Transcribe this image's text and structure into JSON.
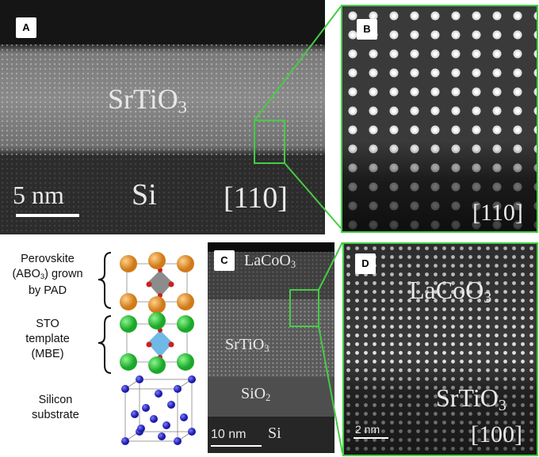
{
  "panels": {
    "A": {
      "letter": "A",
      "film": "SrTiO",
      "film_sub": "3",
      "substrate": "Si",
      "scale": "5 nm",
      "zone": "[110]"
    },
    "B": {
      "letter": "B",
      "zone": "[110]"
    },
    "C": {
      "letter": "C",
      "top": "LaCoO",
      "top_sub": "3",
      "mid": "SrTiO",
      "mid_sub": "3",
      "low": "SiO",
      "low_sub": "2",
      "substrate": "Si",
      "scale": "10 nm"
    },
    "D": {
      "letter": "D",
      "top": "LaCoO",
      "top_sub": "3",
      "bottom": "SrTiO",
      "bottom_sub": "3",
      "scale": "2 nm",
      "zone": "[100]"
    }
  },
  "schematic": {
    "perovskite_l1": "Perovskite",
    "perovskite_l2a": "(ABO",
    "perovskite_l2_sub": "3",
    "perovskite_l2b": ") grown",
    "perovskite_l3": "by PAD",
    "sto_l1": "STO",
    "sto_l2": "template",
    "sto_l3": "(MBE)",
    "si_l1": "Silicon",
    "si_l2": "substrate"
  },
  "colors": {
    "zoom_box": "#44cc44",
    "a_site": "#e8902a",
    "sr_site": "#2ecc40",
    "silicon": "#2a2ad0",
    "oxygen": "#cc2020"
  }
}
